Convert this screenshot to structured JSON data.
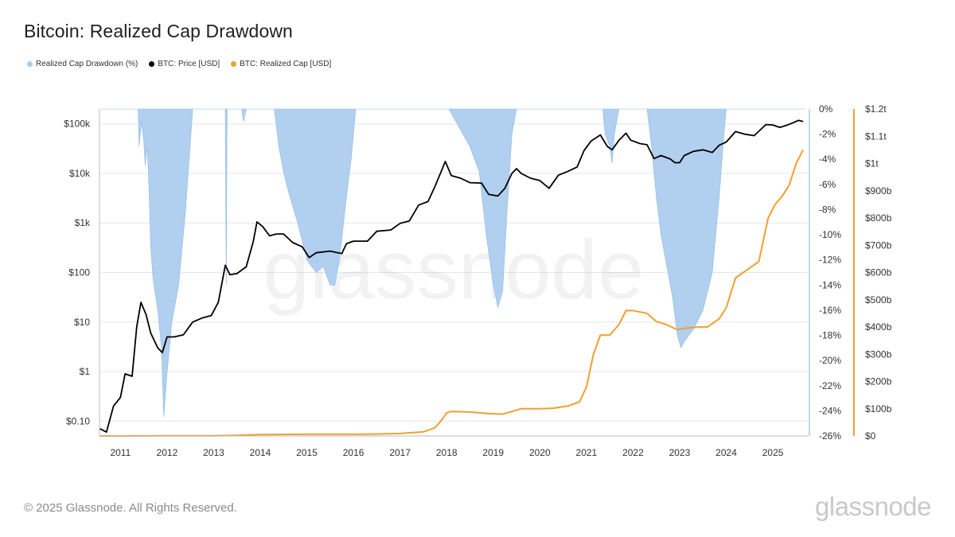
{
  "chart_data": {
    "type": "line",
    "title": "Bitcoin: Realized Cap Drawdown",
    "legend": [
      {
        "name": "Realized Cap Drawdown (%)",
        "color": "#a9cbee"
      },
      {
        "name": "BTC: Price [USD]",
        "color": "#000000"
      },
      {
        "name": "BTC: Realized Cap [USD]",
        "color": "#f0a030"
      }
    ],
    "legend_placement": "top-left",
    "x_ticks": [
      "2011",
      "2012",
      "2013",
      "2014",
      "2015",
      "2016",
      "2017",
      "2018",
      "2019",
      "2020",
      "2021",
      "2022",
      "2023",
      "2024",
      "2025"
    ],
    "x_range": [
      2010.55,
      2025.75
    ],
    "price_axis": {
      "scale": "log",
      "ticks": [
        {
          "v": 0.1,
          "label": "$0.10"
        },
        {
          "v": 1,
          "label": "$1"
        },
        {
          "v": 10,
          "label": "$10"
        },
        {
          "v": 100,
          "label": "$100"
        },
        {
          "v": 1000,
          "label": "$1k"
        },
        {
          "v": 10000,
          "label": "$10k"
        },
        {
          "v": 100000,
          "label": "$100k"
        }
      ],
      "range": [
        0.05,
        200000
      ]
    },
    "drawdown_axis": {
      "ticks": [
        "0%",
        "-2%",
        "-4%",
        "-6%",
        "-8%",
        "-10%",
        "-12%",
        "-14%",
        "-16%",
        "-18%",
        "-20%",
        "-22%",
        "-24%",
        "-26%"
      ],
      "range": [
        -26,
        0
      ]
    },
    "realized_cap_axis": {
      "ticks": [
        "$0",
        "$100b",
        "$200b",
        "$300b",
        "$400b",
        "$500b",
        "$600b",
        "$700b",
        "$800b",
        "$900b",
        "$1t",
        "$1.1t",
        "$1.2t"
      ],
      "range": [
        0,
        1200
      ]
    },
    "grid": true,
    "series": [
      {
        "name": "BTC: Price [USD]",
        "points": [
          [
            2010.56,
            0.07
          ],
          [
            2010.7,
            0.06
          ],
          [
            2010.85,
            0.2
          ],
          [
            2011.0,
            0.3
          ],
          [
            2011.1,
            0.9
          ],
          [
            2011.25,
            0.8
          ],
          [
            2011.35,
            8
          ],
          [
            2011.44,
            25
          ],
          [
            2011.55,
            14
          ],
          [
            2011.65,
            6
          ],
          [
            2011.8,
            3
          ],
          [
            2011.9,
            2.4
          ],
          [
            2012.0,
            5
          ],
          [
            2012.15,
            5
          ],
          [
            2012.35,
            5.5
          ],
          [
            2012.55,
            10
          ],
          [
            2012.75,
            12
          ],
          [
            2012.95,
            13.5
          ],
          [
            2013.1,
            25
          ],
          [
            2013.25,
            140
          ],
          [
            2013.35,
            90
          ],
          [
            2013.5,
            95
          ],
          [
            2013.7,
            130
          ],
          [
            2013.85,
            420
          ],
          [
            2013.93,
            1050
          ],
          [
            2014.05,
            850
          ],
          [
            2014.2,
            550
          ],
          [
            2014.35,
            600
          ],
          [
            2014.5,
            600
          ],
          [
            2014.7,
            400
          ],
          [
            2014.9,
            330
          ],
          [
            2015.05,
            200
          ],
          [
            2015.2,
            250
          ],
          [
            2015.5,
            270
          ],
          [
            2015.75,
            240
          ],
          [
            2015.85,
            380
          ],
          [
            2016.0,
            430
          ],
          [
            2016.3,
            430
          ],
          [
            2016.5,
            680
          ],
          [
            2016.8,
            720
          ],
          [
            2017.0,
            980
          ],
          [
            2017.2,
            1100
          ],
          [
            2017.4,
            2300
          ],
          [
            2017.6,
            2700
          ],
          [
            2017.75,
            5500
          ],
          [
            2017.9,
            12000
          ],
          [
            2017.97,
            17500
          ],
          [
            2018.1,
            9000
          ],
          [
            2018.3,
            8000
          ],
          [
            2018.5,
            6500
          ],
          [
            2018.75,
            6400
          ],
          [
            2018.9,
            3800
          ],
          [
            2019.1,
            3500
          ],
          [
            2019.25,
            5000
          ],
          [
            2019.4,
            10000
          ],
          [
            2019.5,
            12500
          ],
          [
            2019.6,
            10000
          ],
          [
            2019.8,
            8000
          ],
          [
            2020.0,
            7200
          ],
          [
            2020.2,
            5000
          ],
          [
            2020.4,
            9200
          ],
          [
            2020.6,
            11000
          ],
          [
            2020.8,
            13500
          ],
          [
            2020.95,
            29000
          ],
          [
            2021.1,
            45000
          ],
          [
            2021.3,
            60000
          ],
          [
            2021.45,
            35000
          ],
          [
            2021.55,
            30000
          ],
          [
            2021.7,
            47000
          ],
          [
            2021.85,
            65000
          ],
          [
            2021.95,
            47000
          ],
          [
            2022.15,
            40000
          ],
          [
            2022.3,
            38000
          ],
          [
            2022.45,
            20000
          ],
          [
            2022.6,
            23000
          ],
          [
            2022.8,
            19500
          ],
          [
            2022.9,
            16500
          ],
          [
            2023.0,
            16500
          ],
          [
            2023.1,
            23000
          ],
          [
            2023.3,
            28000
          ],
          [
            2023.5,
            30000
          ],
          [
            2023.7,
            26500
          ],
          [
            2023.85,
            37000
          ],
          [
            2024.0,
            43000
          ],
          [
            2024.2,
            70000
          ],
          [
            2024.4,
            62000
          ],
          [
            2024.6,
            58000
          ],
          [
            2024.85,
            97000
          ],
          [
            2025.0,
            95000
          ],
          [
            2025.15,
            85000
          ],
          [
            2025.3,
            94000
          ],
          [
            2025.45,
            107000
          ],
          [
            2025.55,
            118000
          ],
          [
            2025.65,
            112000
          ]
        ]
      },
      {
        "name": "BTC: Realized Cap [USD]",
        "unit": "billion USD",
        "points": [
          [
            2010.56,
            0
          ],
          [
            2012.0,
            0.5
          ],
          [
            2013.0,
            1
          ],
          [
            2013.5,
            2
          ],
          [
            2013.95,
            5
          ],
          [
            2015.0,
            6
          ],
          [
            2016.0,
            6
          ],
          [
            2016.5,
            7
          ],
          [
            2017.0,
            9
          ],
          [
            2017.5,
            15
          ],
          [
            2017.75,
            30
          ],
          [
            2017.9,
            60
          ],
          [
            2018.0,
            85
          ],
          [
            2018.1,
            90
          ],
          [
            2018.5,
            88
          ],
          [
            2018.9,
            82
          ],
          [
            2019.2,
            80
          ],
          [
            2019.4,
            90
          ],
          [
            2019.6,
            100
          ],
          [
            2020.0,
            100
          ],
          [
            2020.3,
            102
          ],
          [
            2020.6,
            110
          ],
          [
            2020.85,
            125
          ],
          [
            2021.0,
            180
          ],
          [
            2021.15,
            300
          ],
          [
            2021.3,
            370
          ],
          [
            2021.5,
            370
          ],
          [
            2021.7,
            410
          ],
          [
            2021.85,
            460
          ],
          [
            2022.0,
            460
          ],
          [
            2022.3,
            450
          ],
          [
            2022.5,
            420
          ],
          [
            2022.7,
            410
          ],
          [
            2022.95,
            390
          ],
          [
            2023.1,
            395
          ],
          [
            2023.4,
            400
          ],
          [
            2023.6,
            400
          ],
          [
            2023.85,
            430
          ],
          [
            2024.0,
            470
          ],
          [
            2024.2,
            580
          ],
          [
            2024.45,
            610
          ],
          [
            2024.7,
            640
          ],
          [
            2024.9,
            800
          ],
          [
            2025.05,
            850
          ],
          [
            2025.2,
            880
          ],
          [
            2025.35,
            920
          ],
          [
            2025.5,
            1000
          ],
          [
            2025.65,
            1050
          ]
        ]
      },
      {
        "name": "Realized Cap Drawdown (%)",
        "points": [
          [
            2010.56,
            0
          ],
          [
            2011.38,
            0
          ],
          [
            2011.4,
            -3
          ],
          [
            2011.45,
            -1
          ],
          [
            2011.5,
            -2.5
          ],
          [
            2011.53,
            -4.5
          ],
          [
            2011.57,
            -3
          ],
          [
            2011.6,
            -5
          ],
          [
            2011.65,
            -11
          ],
          [
            2011.7,
            -13.5
          ],
          [
            2011.8,
            -16
          ],
          [
            2011.88,
            -19
          ],
          [
            2011.93,
            -24.5
          ],
          [
            2012.0,
            -21
          ],
          [
            2012.1,
            -17
          ],
          [
            2012.25,
            -14
          ],
          [
            2012.4,
            -8
          ],
          [
            2012.55,
            0
          ],
          [
            2013.25,
            0
          ],
          [
            2013.27,
            -14
          ],
          [
            2013.29,
            0
          ],
          [
            2013.6,
            0
          ],
          [
            2013.64,
            -1
          ],
          [
            2013.7,
            0
          ],
          [
            2014.3,
            0
          ],
          [
            2014.4,
            -3
          ],
          [
            2014.5,
            -5
          ],
          [
            2014.6,
            -6.5
          ],
          [
            2014.8,
            -9
          ],
          [
            2015.0,
            -12
          ],
          [
            2015.2,
            -13
          ],
          [
            2015.35,
            -12.5
          ],
          [
            2015.5,
            -14
          ],
          [
            2015.6,
            -14
          ],
          [
            2015.7,
            -12
          ],
          [
            2015.85,
            -7
          ],
          [
            2015.95,
            -4
          ],
          [
            2016.05,
            0
          ],
          [
            2018.05,
            0
          ],
          [
            2018.2,
            -1
          ],
          [
            2018.35,
            -2
          ],
          [
            2018.5,
            -3
          ],
          [
            2018.7,
            -5
          ],
          [
            2018.85,
            -10
          ],
          [
            2019.0,
            -14
          ],
          [
            2019.1,
            -15.8
          ],
          [
            2019.2,
            -14.5
          ],
          [
            2019.3,
            -8
          ],
          [
            2019.4,
            -2
          ],
          [
            2019.5,
            0
          ],
          [
            2021.35,
            0
          ],
          [
            2021.4,
            -2
          ],
          [
            2021.5,
            -3
          ],
          [
            2021.55,
            -4.3
          ],
          [
            2021.6,
            -2
          ],
          [
            2021.7,
            0
          ],
          [
            2022.3,
            0
          ],
          [
            2022.4,
            -3
          ],
          [
            2022.5,
            -7
          ],
          [
            2022.6,
            -10
          ],
          [
            2022.7,
            -12
          ],
          [
            2022.85,
            -15
          ],
          [
            2022.95,
            -18
          ],
          [
            2023.03,
            -19
          ],
          [
            2023.1,
            -18.5
          ],
          [
            2023.3,
            -17.5
          ],
          [
            2023.5,
            -16
          ],
          [
            2023.7,
            -13
          ],
          [
            2023.85,
            -7
          ],
          [
            2023.95,
            -2
          ],
          [
            2024.0,
            0
          ],
          [
            2025.7,
            0
          ]
        ]
      }
    ]
  },
  "footer": {
    "copyright": "© 2025 Glassnode. All Rights Reserved.",
    "brand": "glassnode",
    "watermark": "glassnode"
  },
  "colors": {
    "drawdown": "#a9cbee",
    "price": "#000000",
    "realized_cap": "#f0a030",
    "grid": "#e6e6e6"
  }
}
